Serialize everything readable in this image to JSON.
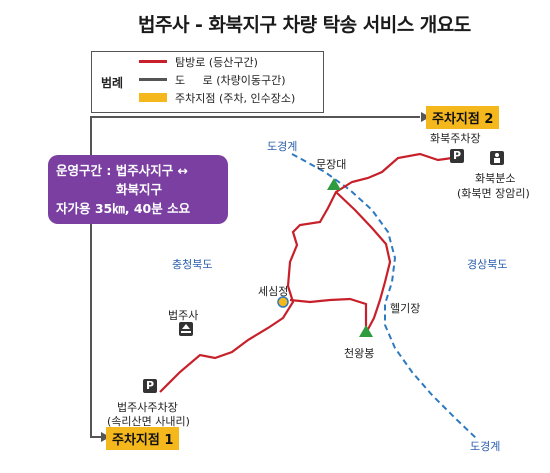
{
  "title": "법주사 - 화북지구 차량 탁송 서비스 개요도",
  "legend": {
    "title": "범례",
    "items": [
      {
        "label": "탐방로 (등산구간)",
        "color": "#c8202a"
      },
      {
        "label": "도     로 (차량이동구간)",
        "color": "#555555"
      },
      {
        "label": "주차지점 (주차, 인수장소)",
        "color": "#f5b81c"
      }
    ]
  },
  "info": {
    "line1": "운영구간 : 법주사지구 ↔",
    "line2": "화북지구",
    "line3": "자가용 35㎞, 40분 소요",
    "color": "#7a3fa1"
  },
  "parking": {
    "p1": {
      "label": "주차지점 1",
      "sign": "P"
    },
    "p2": {
      "label": "주차지점 2",
      "sign": "P"
    }
  },
  "places": {
    "beopjusa_parking": "법주사주차장",
    "beopjusa_parking_sub": "(속리산면 사내리)",
    "beopjusa": "법주사",
    "hwabuk_parking": "화북주차장",
    "hwabuk_office": "화북분소",
    "hwabuk_office_sub": "(화북면 장암리)",
    "munjangdae": "문장대",
    "sesimjeong": "세심정",
    "heligijang": "헬기장",
    "cheonwangbong": "천왕봉",
    "chungbuk": "충청북도",
    "gyeongbuk": "경상북도",
    "border_top": "도경계",
    "border_bottom": "도경계"
  }
}
